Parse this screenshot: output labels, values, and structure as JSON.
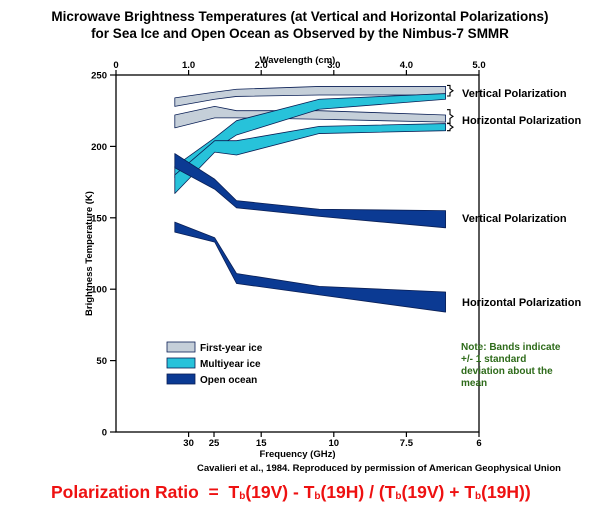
{
  "title_line1": "Microwave Brightness Temperatures (at Vertical and Horizontal Polarizations)",
  "title_line2": "for Sea Ice and Open Ocean as Observed by the Nimbus-7 SMMR",
  "source": "Cavalieri et al., 1984. Reproduced by permission of American Geophysical Union",
  "formula": {
    "label": "Polarization Ratio",
    "eq": "=",
    "t": "T",
    "b": "b",
    "v": "(19V)",
    "h": "(19H)",
    "minus": "-",
    "slash": "/",
    "plus": "+",
    "open": "(",
    "close": ")"
  },
  "note": "Note: Bands indicate +/- 1 standard deviation about the mean",
  "colors": {
    "first_year": "#c5cfd9",
    "multiyear": "#27c2da",
    "ocean": "#0b3a93",
    "formula": "#ee1111",
    "note": "#2e6b1a"
  },
  "chart_data": {
    "type": "area",
    "ylabel": "Brightness Temperature (K)",
    "xlabel_bottom": "Frequency (GHz)",
    "xlabel_top": "Wavelength (cm)",
    "ylim": [
      0,
      250
    ],
    "yticks": [
      0,
      50,
      100,
      150,
      200,
      250
    ],
    "top_ticks": [
      "0",
      "1.0",
      "2.0",
      "3.0",
      "4.0",
      "5.0"
    ],
    "bottom_ticks": [
      {
        "label": "30",
        "wl": 1.0
      },
      {
        "label": "25",
        "wl": 1.35
      },
      {
        "label": "15",
        "wl": 2.0
      },
      {
        "label": "10",
        "wl": 3.0
      },
      {
        "label": "7.5",
        "wl": 4.0
      },
      {
        "label": "6",
        "wl": 5.0
      }
    ],
    "x_wavelength_cm": [
      0.81,
      1.36,
      1.66,
      2.8,
      4.54
    ],
    "bands": [
      {
        "name": "First-year ice",
        "pol": "V",
        "lower": [
          228,
          233,
          235,
          236,
          236
        ],
        "upper": [
          234,
          238,
          240,
          242,
          242
        ]
      },
      {
        "name": "First-year ice",
        "pol": "H",
        "lower": [
          213,
          220,
          220,
          219,
          217
        ],
        "upper": [
          222,
          228,
          225,
          225,
          222
        ]
      },
      {
        "name": "Multiyear ice",
        "pol": "V",
        "lower": [
          178,
          198,
          208,
          226,
          233
        ],
        "upper": [
          186,
          206,
          218,
          233,
          237
        ]
      },
      {
        "name": "Multiyear ice",
        "pol": "H",
        "lower": [
          167,
          196,
          194,
          209,
          211
        ],
        "upper": [
          180,
          204,
          204,
          214,
          216
        ]
      },
      {
        "name": "Open ocean",
        "pol": "V",
        "lower": [
          185,
          170,
          157,
          151,
          143
        ],
        "upper": [
          195,
          177,
          162,
          156,
          155
        ]
      },
      {
        "name": "Open ocean",
        "pol": "H",
        "lower": [
          140,
          133,
          104,
          96,
          84
        ],
        "upper": [
          147,
          136,
          111,
          102,
          98
        ]
      }
    ],
    "legend": [
      "First-year ice",
      "Multiyear ice",
      "Open ocean"
    ],
    "annotations": {
      "ice_v": "Vertical Polarization",
      "ice_h": "Horizontal Polarization",
      "ocean_v": "Vertical Polarization",
      "ocean_h": "Horizontal Polarization"
    }
  }
}
